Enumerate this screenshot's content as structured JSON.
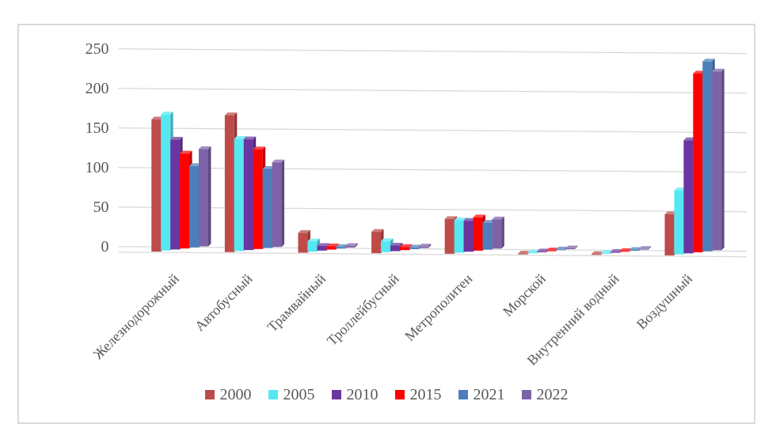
{
  "chart": {
    "background_color": "#ffffff",
    "frame_border_color": "#d9d9d9",
    "gridline_color": "#d9d9d9",
    "text_color": "#595959"
  },
  "chart_data": {
    "type": "bar",
    "style": "3d-clustered-column",
    "title": "",
    "xlabel": "",
    "ylabel": "",
    "grid": true,
    "legend_position": "bottom",
    "ylim": [
      0,
      250
    ],
    "ytick_interval": 50,
    "yticks": [
      "0",
      "50",
      "100",
      "150",
      "200",
      "250"
    ],
    "categories": [
      "Железнодорожный",
      "Автобусный",
      "Трамвайный",
      "Троллейбусный",
      "Метрополитен",
      "Морской",
      "Внутренний водный",
      "Воздушный"
    ],
    "series": [
      {
        "name": "2000",
        "color": "#be4b48",
        "values": [
          167,
          173,
          25,
          27,
          44,
          1,
          1,
          52
        ]
      },
      {
        "name": "2005",
        "color": "#55e8f2",
        "values": [
          172,
          142,
          13,
          14,
          41,
          1,
          1,
          81
        ]
      },
      {
        "name": "2010",
        "color": "#6a35a0",
        "values": [
          139,
          140,
          6,
          7,
          39,
          0.5,
          1,
          143
        ]
      },
      {
        "name": "2015",
        "color": "#fe0000",
        "values": [
          120,
          126,
          4,
          4,
          42,
          0.5,
          0.5,
          226
        ]
      },
      {
        "name": "2021",
        "color": "#4d7ebb",
        "values": [
          103,
          100,
          2,
          2,
          34,
          0.5,
          0.5,
          240
        ]
      },
      {
        "name": "2022",
        "color": "#7d62a7",
        "values": [
          123,
          107,
          2,
          2,
          37,
          0.5,
          0.5,
          226
        ]
      }
    ]
  }
}
